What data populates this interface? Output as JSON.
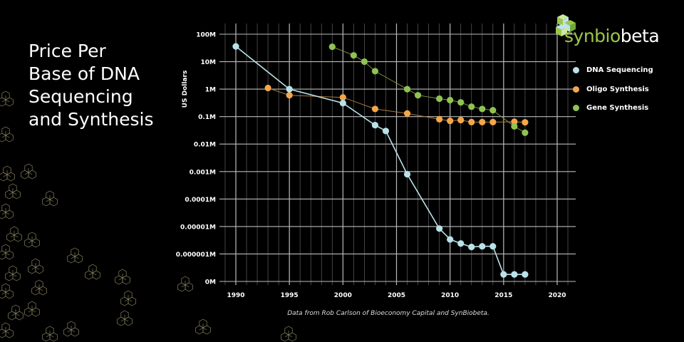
{
  "title": "Price Per\nBase of DNA\nSequencing\nand Synthesis",
  "logo": {
    "part1": "synbio",
    "part2": "beta"
  },
  "source_note": "Data from Rob Carlson of Bioeconomy Capital and SynBiobeta.",
  "chart_data": {
    "type": "line",
    "ylabel": "US Dollars",
    "xlabel": "",
    "x_ticks": [
      1990,
      1995,
      2000,
      2005,
      2010,
      2015,
      2020
    ],
    "xlim": [
      1990,
      2020
    ],
    "y_scale": "log",
    "ylim_millions": [
      1e-07,
      100
    ],
    "y_ticks": [
      {
        "value": 100,
        "label": "100M"
      },
      {
        "value": 10,
        "label": "10M"
      },
      {
        "value": 1,
        "label": "1M"
      },
      {
        "value": 0.1,
        "label": "0.1M"
      },
      {
        "value": 0.01,
        "label": "0.01M"
      },
      {
        "value": 0.001,
        "label": "0.001M"
      },
      {
        "value": 0.0001,
        "label": "0.0001M"
      },
      {
        "value": 1e-05,
        "label": "0.00001M"
      },
      {
        "value": 1e-06,
        "label": "0.000001M"
      },
      {
        "value": 1e-07,
        "label": "0M"
      }
    ],
    "grid": true,
    "legend_position": "right",
    "series": [
      {
        "name": "DNA Sequencing",
        "color": "#b9e2e8",
        "line_color": "#b9e2e8",
        "x": [
          1990,
          1995,
          2000,
          2003,
          2004,
          2006,
          2009,
          2010,
          2011,
          2012,
          2013,
          2014,
          2015,
          2016,
          2017
        ],
        "values": [
          36,
          1,
          0.31,
          0.049,
          0.03,
          0.0008,
          8.4e-06,
          3.4e-06,
          2.4e-06,
          1.8e-06,
          1.9e-06,
          1.9e-06,
          1.8e-07,
          1.8e-07,
          1.8e-07
        ]
      },
      {
        "name": "Oligo Synthesis",
        "color": "#f4a64a",
        "line_color": "#a87a3c",
        "x": [
          1993,
          1995,
          2000,
          2003,
          2006,
          2009,
          2010,
          2011,
          2012,
          2013,
          2014,
          2016,
          2017
        ],
        "values": [
          1.1,
          0.6,
          0.5,
          0.19,
          0.13,
          0.08,
          0.07,
          0.075,
          0.063,
          0.063,
          0.063,
          0.065,
          0.062
        ]
      },
      {
        "name": "Gene Synthesis",
        "color": "#8fc253",
        "line_color": "#7f8f3a",
        "x": [
          1999,
          2001,
          2002,
          2003,
          2006,
          2007,
          2009,
          2010,
          2011,
          2012,
          2013,
          2014,
          2016,
          2017
        ],
        "values": [
          35,
          17,
          10,
          4.5,
          1,
          0.6,
          0.45,
          0.4,
          0.33,
          0.23,
          0.19,
          0.17,
          0.044,
          0.026
        ]
      }
    ]
  }
}
